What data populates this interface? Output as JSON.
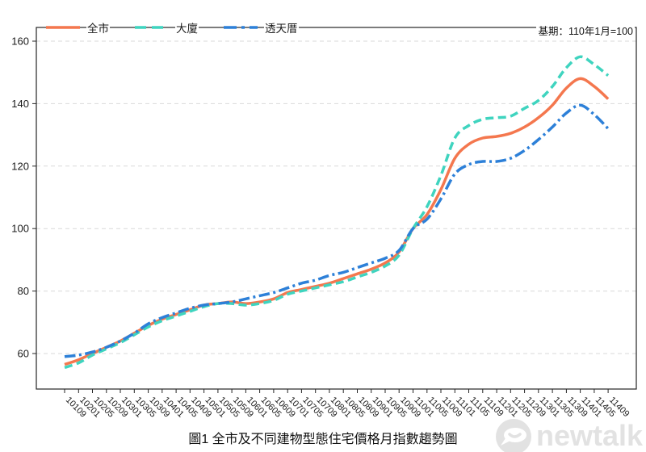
{
  "chart_data": {
    "type": "line",
    "title": "圖1 全市及不同建物型態住宅價格月指數趨勢圖",
    "base_note": "基期：110年1月=100",
    "x_tick_labels": [
      "10109",
      "10201",
      "10205",
      "10209",
      "10301",
      "10305",
      "10309",
      "10401",
      "10405",
      "10409",
      "10501",
      "10505",
      "10509",
      "10601",
      "10605",
      "10609",
      "10701",
      "10705",
      "10709",
      "10801",
      "10805",
      "10809",
      "10901",
      "10905",
      "10909",
      "11001",
      "11005",
      "11009",
      "11101",
      "11105",
      "11109",
      "11201",
      "11205",
      "11209",
      "11301",
      "11305",
      "11309",
      "11401",
      "11405",
      "11409"
    ],
    "y_ticks": [
      60,
      80,
      100,
      120,
      140,
      160
    ],
    "ylim": [
      49,
      164.5
    ],
    "grid": "horizontal-dashed",
    "legend_position": "top-left-inside",
    "series": [
      {
        "name": "全市",
        "color": "#F4774E",
        "style": "solid",
        "values": [
          56.5,
          58,
          60,
          62,
          64,
          66.5,
          69,
          71,
          72.5,
          74,
          75.5,
          76,
          76.5,
          76,
          76.5,
          77.5,
          79.5,
          80.5,
          81.5,
          82.5,
          84,
          85.5,
          87,
          89,
          92.5,
          100,
          104.5,
          112.5,
          122.5,
          127,
          129,
          129.5,
          130.5,
          132.5,
          135.5,
          139.5,
          145,
          148,
          145.5,
          141.5
        ]
      },
      {
        "name": "大廈",
        "color": "#3FD4BF",
        "style": "dashed",
        "values": [
          55.5,
          57,
          59.5,
          61.5,
          63.5,
          66,
          68.5,
          70.5,
          72,
          73.5,
          75,
          76,
          76,
          75.5,
          76,
          77,
          79,
          80,
          81,
          82,
          83,
          84.5,
          86,
          88,
          91.5,
          100,
          107,
          117,
          129,
          133,
          135,
          135.5,
          136,
          138.5,
          141,
          145.5,
          151.5,
          155,
          152.5,
          149
        ]
      },
      {
        "name": "透天厝",
        "color": "#2D80D8",
        "style": "dash-dot",
        "values": [
          59,
          59.5,
          60.5,
          62,
          64,
          66.5,
          69.5,
          71.5,
          73,
          74.5,
          75.5,
          76,
          76.5,
          77.5,
          78.5,
          79.5,
          81,
          82.5,
          83.5,
          85,
          86,
          87.5,
          89,
          90.5,
          93,
          100,
          103,
          109.5,
          117.5,
          120.5,
          121.5,
          121.5,
          122.5,
          125,
          128.5,
          132.5,
          137,
          139.5,
          136.5,
          132
        ]
      }
    ]
  },
  "watermark": {
    "text": "newtalk"
  },
  "colors": {
    "grid": "#d9d9d9",
    "spine": "#262626",
    "watermark": "#e2e2e2"
  }
}
